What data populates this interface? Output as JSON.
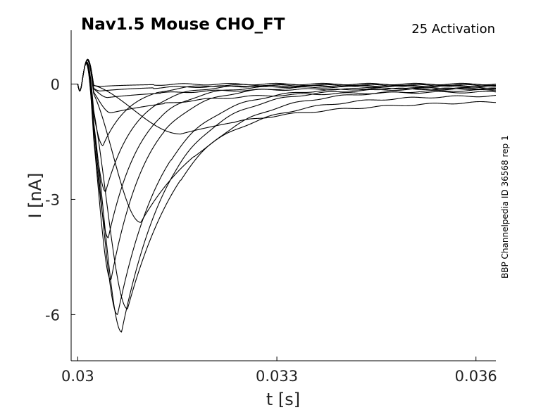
{
  "chart_data": {
    "type": "line",
    "title": "Nav1.5  Mouse  CHO_FT",
    "subtitle": "25  Activation",
    "side_label": "BBP Channelpedia ID 36568 rep 1",
    "xlabel": "t [s]",
    "ylabel": "I [nA]",
    "xlim": [
      0.0299,
      0.0363
    ],
    "ylim": [
      -7.2,
      1.4
    ],
    "xticks": [
      0.03,
      0.033,
      0.036
    ],
    "xtick_labels": [
      "0.03",
      "0.033",
      "0.036"
    ],
    "yticks": [
      0,
      -3,
      -6
    ],
    "ytick_labels": [
      "0",
      "-3",
      "-6"
    ],
    "grid": false,
    "legend": "none",
    "stimulus_onset": 0.03,
    "series": [
      {
        "peak": -0.06,
        "t_peak": 0.03035,
        "tau": 0.0006,
        "tail": 0.0
      },
      {
        "peak": -0.18,
        "t_peak": 0.03034,
        "tau": 0.0008,
        "tail": -0.05
      },
      {
        "peak": -0.35,
        "t_peak": 0.03045,
        "tau": 0.0012,
        "tail": -0.12
      },
      {
        "peak": -0.75,
        "t_peak": 0.0305,
        "tau": 0.0014,
        "tail": -0.2
      },
      {
        "peak": -1.3,
        "t_peak": 0.03155,
        "tau": 0.002,
        "tail": -0.38
      },
      {
        "peak": -1.6,
        "t_peak": 0.03038,
        "tau": 0.0004,
        "tail": -0.02
      },
      {
        "peak": -2.8,
        "t_peak": 0.03042,
        "tau": 0.00045,
        "tail": -0.03
      },
      {
        "peak": -3.6,
        "t_peak": 0.03095,
        "tau": 0.0011,
        "tail": -0.28
      },
      {
        "peak": -4.0,
        "t_peak": 0.03046,
        "tau": 0.0005,
        "tail": -0.05
      },
      {
        "peak": -5.1,
        "t_peak": 0.0305,
        "tau": 0.00055,
        "tail": -0.07
      },
      {
        "peak": -5.85,
        "t_peak": 0.03075,
        "tau": 0.0009,
        "tail": -0.15
      },
      {
        "peak": -6.0,
        "t_peak": 0.0306,
        "tau": 0.0007,
        "tail": -0.1
      },
      {
        "peak": -6.45,
        "t_peak": 0.03066,
        "tau": 0.00075,
        "tail": -0.12
      }
    ]
  }
}
